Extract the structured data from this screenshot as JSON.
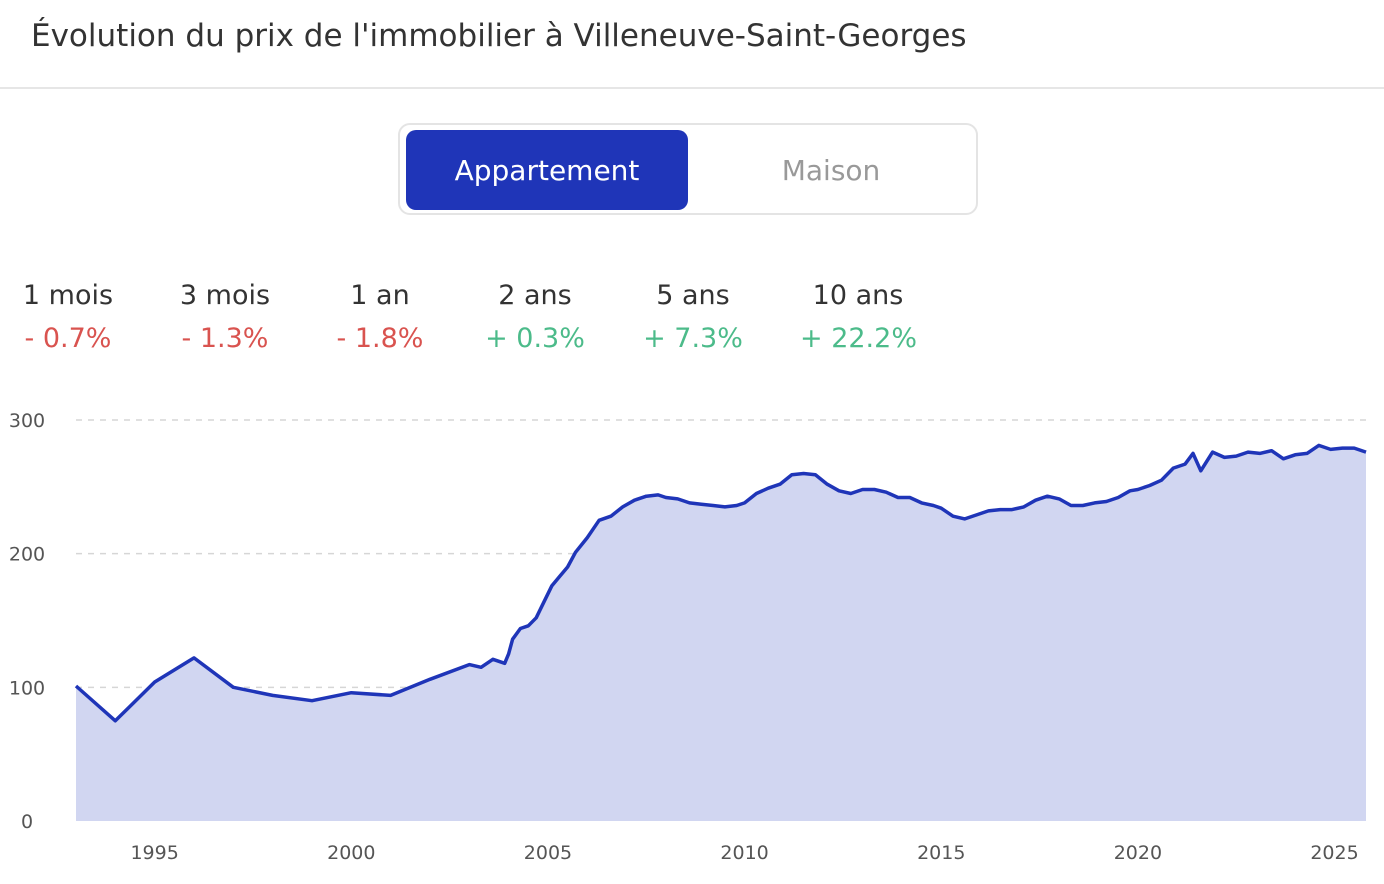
{
  "title": "Évolution du prix de l'immobilier à Villeneuve-Saint-Georges",
  "toggle": {
    "options": [
      "Appartement",
      "Maison"
    ],
    "selected": "Appartement",
    "active_color": "#1f35b8"
  },
  "stats": [
    {
      "period": "1 mois",
      "change": "- 0.7%",
      "direction": "negative"
    },
    {
      "period": "3 mois",
      "change": "- 1.3%",
      "direction": "negative"
    },
    {
      "period": "1 an",
      "change": "- 1.8%",
      "direction": "negative"
    },
    {
      "period": "2 ans",
      "change": "+ 0.3%",
      "direction": "positive"
    },
    {
      "period": "5 ans",
      "change": "+ 7.3%",
      "direction": "positive"
    },
    {
      "period": "10 ans",
      "change": "+ 22.2%",
      "direction": "positive"
    }
  ],
  "colors": {
    "negative": "#d9534f",
    "positive": "#4cbb8a",
    "line": "#1f35b8",
    "area": "#d1d6f1"
  },
  "chart_data": {
    "type": "area",
    "xlim": [
      1993,
      2025.8
    ],
    "ylim": [
      0,
      300
    ],
    "yticks": [
      0,
      100,
      200,
      300
    ],
    "xticks": [
      1995,
      2000,
      2005,
      2010,
      2015,
      2020,
      2025
    ],
    "grid": "horizontal-dashed",
    "series": [
      {
        "x": [
          1993,
          1994,
          1995,
          1996,
          1997,
          1998,
          1999,
          2000,
          2001,
          2002,
          2003,
          2003.3,
          2003.6,
          2003.9,
          2004.0,
          2004.1,
          2004.3,
          2004.5,
          2004.7,
          2004.9,
          2005.1,
          2005.3,
          2005.5,
          2005.7,
          2006.0,
          2006.3,
          2006.6,
          2006.9,
          2007.2,
          2007.5,
          2007.8,
          2008.0,
          2008.3,
          2008.6,
          2008.9,
          2009.2,
          2009.5,
          2009.8,
          2010.0,
          2010.3,
          2010.6,
          2010.9,
          2011.2,
          2011.5,
          2011.8,
          2012.1,
          2012.4,
          2012.7,
          2013.0,
          2013.3,
          2013.6,
          2013.9,
          2014.2,
          2014.5,
          2014.8,
          2015.0,
          2015.3,
          2015.6,
          2015.9,
          2016.2,
          2016.5,
          2016.8,
          2017.1,
          2017.4,
          2017.7,
          2018.0,
          2018.3,
          2018.6,
          2018.9,
          2019.2,
          2019.5,
          2019.8,
          2020.0,
          2020.3,
          2020.6,
          2020.9,
          2021.2,
          2021.4,
          2021.6,
          2021.9,
          2022.2,
          2022.5,
          2022.8,
          2023.1,
          2023.4,
          2023.7,
          2024.0,
          2024.3,
          2024.6,
          2024.9,
          2025.2,
          2025.5,
          2025.8
        ],
        "y": [
          101,
          75,
          104,
          122,
          100,
          94,
          90,
          96,
          94,
          106,
          117,
          115,
          121,
          118,
          125,
          136,
          144,
          146,
          152,
          164,
          176,
          183,
          190,
          201,
          212,
          225,
          228,
          235,
          240,
          243,
          244,
          242,
          241,
          238,
          237,
          236,
          235,
          236,
          238,
          245,
          249,
          252,
          259,
          260,
          259,
          252,
          247,
          245,
          248,
          248,
          246,
          242,
          242,
          238,
          236,
          234,
          228,
          226,
          229,
          232,
          233,
          233,
          235,
          240,
          243,
          241,
          236,
          236,
          238,
          239,
          242,
          247,
          248,
          251,
          255,
          264,
          267,
          275,
          262,
          276,
          272,
          273,
          276,
          275,
          277,
          271,
          274,
          275,
          281,
          278,
          279,
          279,
          276
        ]
      }
    ]
  }
}
